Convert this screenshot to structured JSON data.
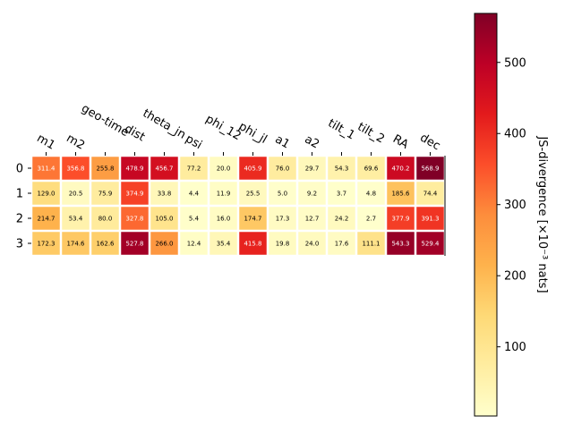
{
  "chart_data": {
    "type": "heatmap",
    "columns": [
      "m1",
      "m2",
      "geo-time",
      "dist",
      "theta_jn",
      "psi",
      "phi_12",
      "phi_jl",
      "a1",
      "a2",
      "tilt_1",
      "tilt_2",
      "RA",
      "dec"
    ],
    "rows": [
      "0",
      "1",
      "2",
      "3"
    ],
    "values": [
      [
        311.4,
        356.8,
        255.8,
        478.9,
        456.7,
        77.2,
        20.0,
        405.9,
        76.0,
        29.7,
        54.3,
        69.6,
        470.2,
        568.9
      ],
      [
        129.0,
        20.5,
        75.9,
        374.9,
        33.8,
        4.4,
        11.9,
        25.5,
        5.0,
        9.2,
        3.7,
        4.8,
        185.6,
        74.4
      ],
      [
        214.7,
        53.4,
        80.0,
        327.8,
        105.0,
        5.4,
        16.0,
        174.7,
        17.3,
        12.7,
        24.2,
        2.7,
        377.9,
        391.3
      ],
      [
        172.3,
        174.6,
        162.6,
        527.8,
        266.0,
        12.4,
        35.4,
        415.8,
        19.8,
        24.0,
        17.6,
        111.1,
        543.3,
        529.4
      ]
    ],
    "colorbar": {
      "label": "JS-divergence [×10⁻³ nats]",
      "colormap": "YlOrRd",
      "range": [
        2.7,
        568.9
      ],
      "ticks": [
        100,
        200,
        300,
        400,
        500
      ],
      "tick_labels": [
        "100",
        "200",
        "300",
        "400",
        "500"
      ]
    },
    "xticks_position": "top",
    "grid": false
  }
}
